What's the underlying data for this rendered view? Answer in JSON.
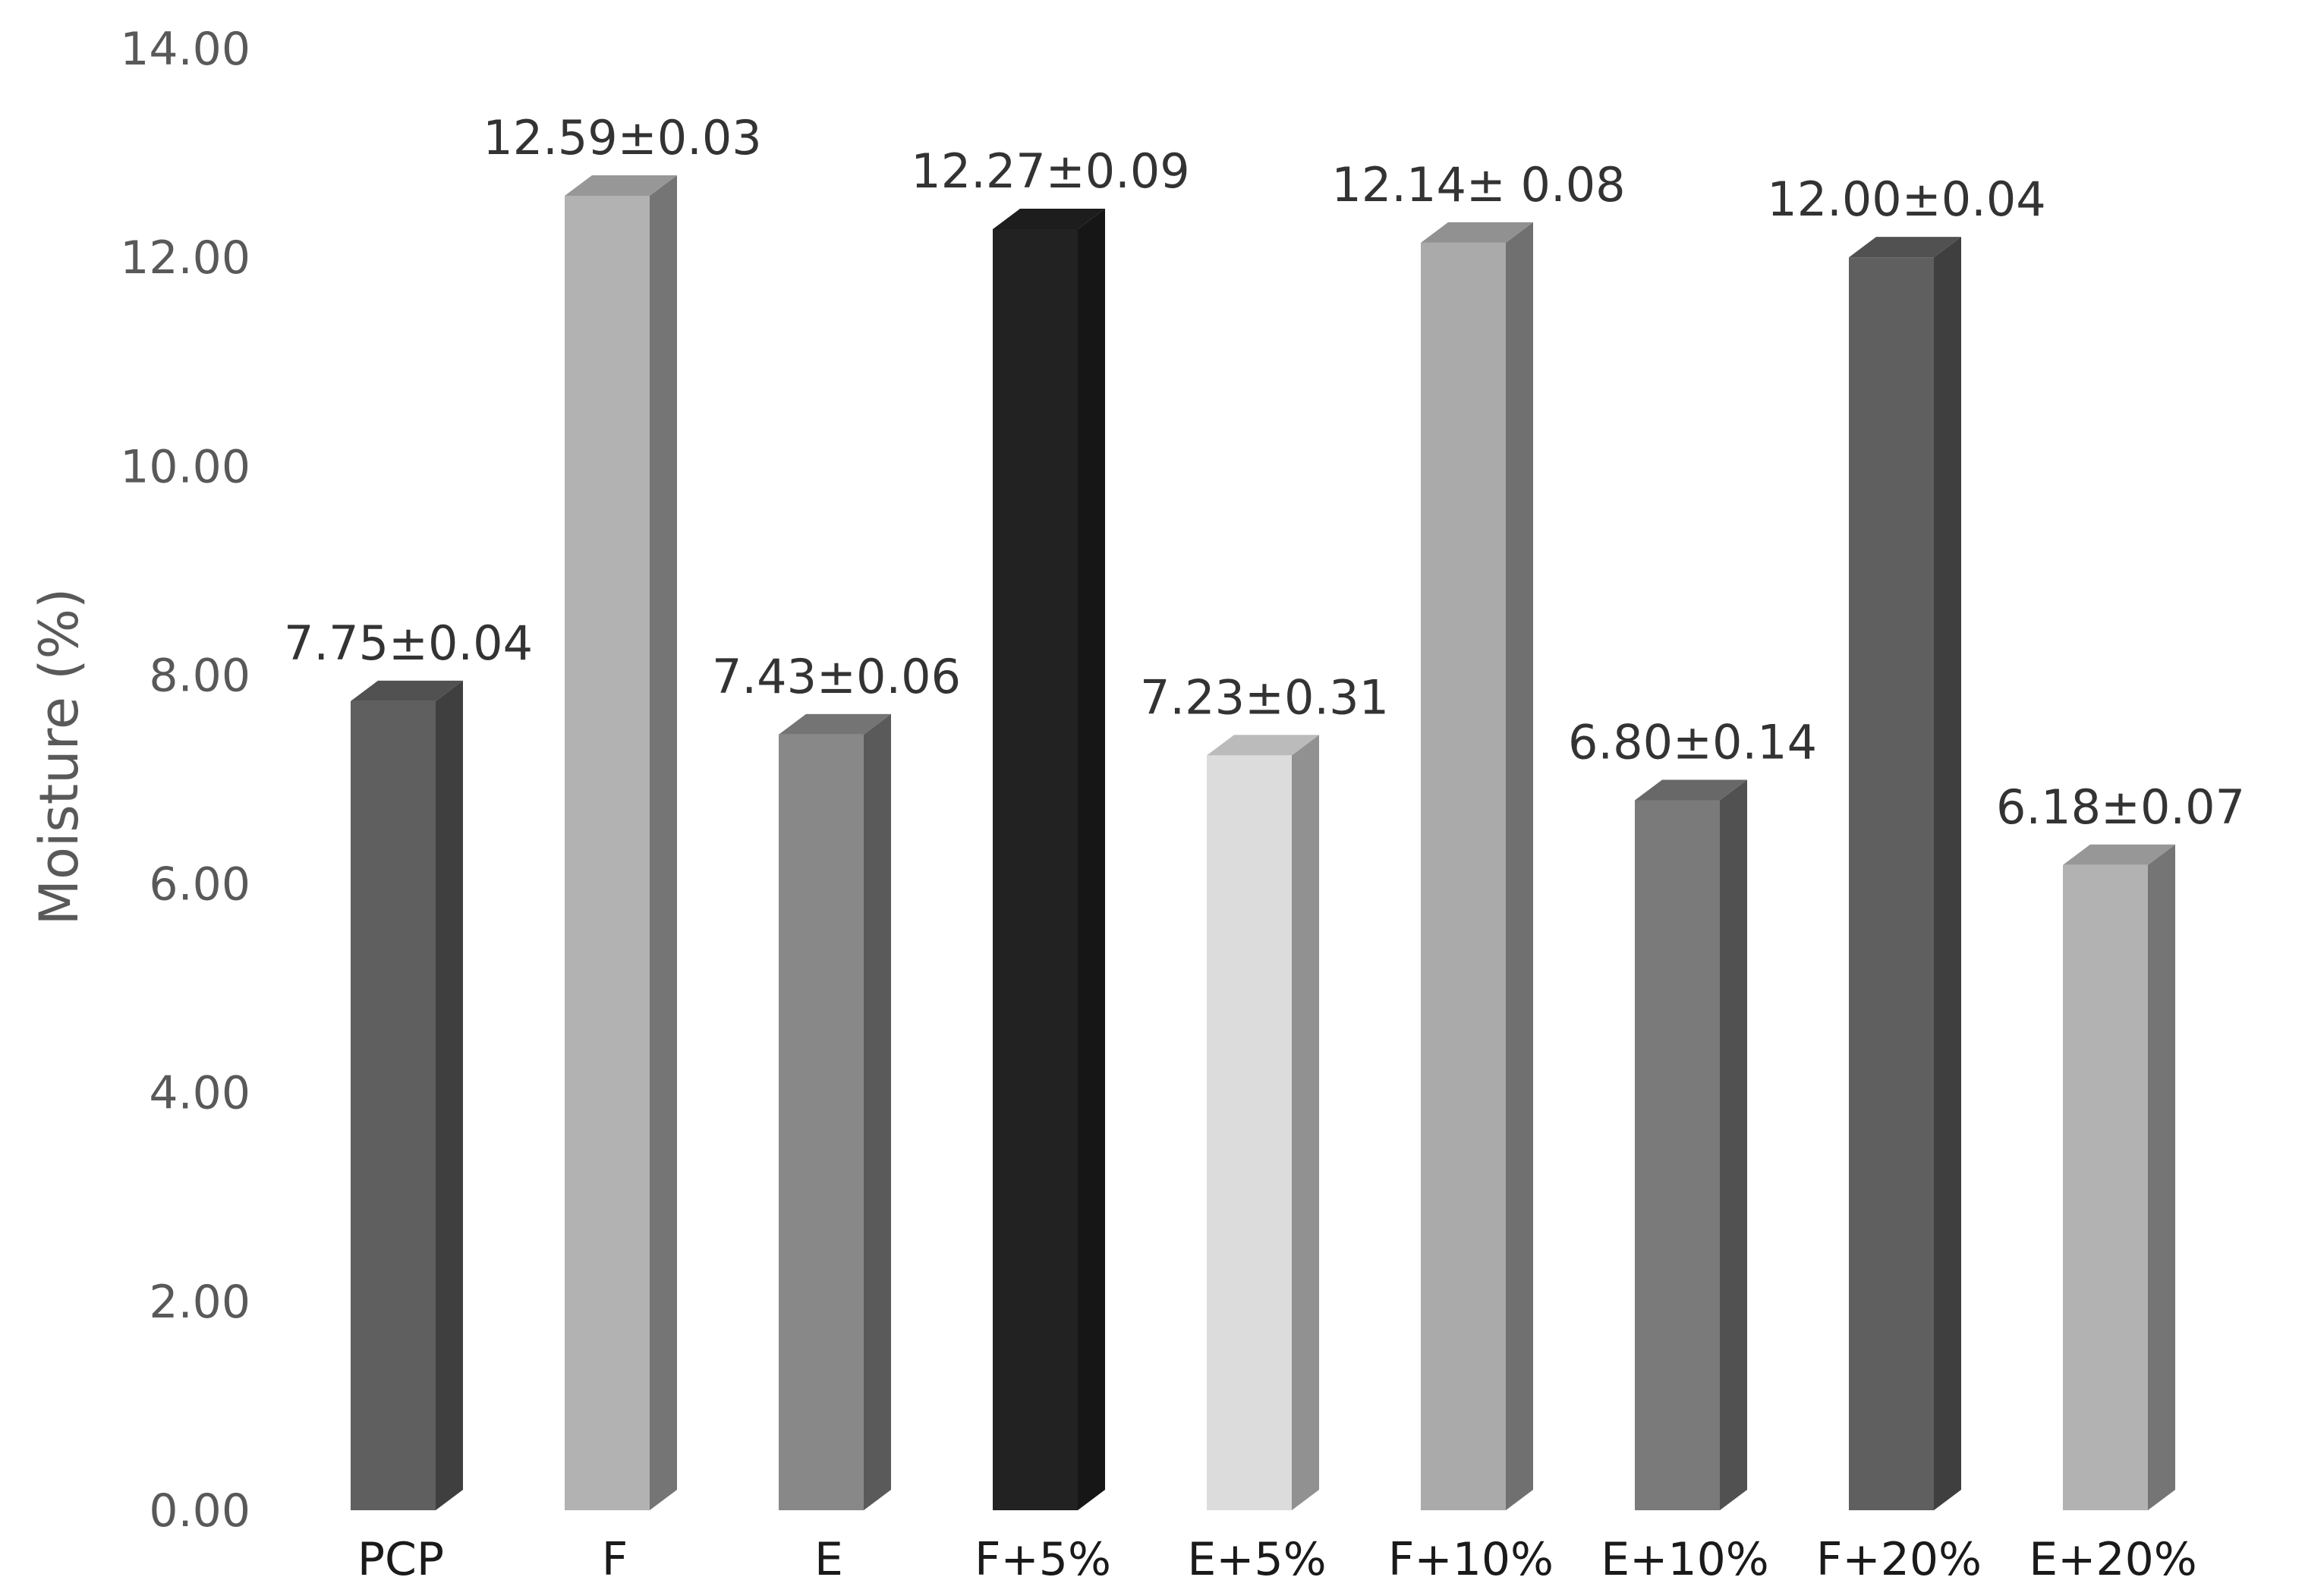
{
  "chart_data": {
    "type": "bar",
    "style": "3d-column",
    "title": "",
    "xlabel": "",
    "ylabel": "Moisture (%)",
    "ylim": [
      0,
      14
    ],
    "yticks": [
      "0.00",
      "2.00",
      "4.00",
      "6.00",
      "8.00",
      "10.00",
      "12.00",
      "14.00"
    ],
    "grid": false,
    "legend": "none",
    "categories": [
      "PCP",
      "F",
      "E",
      "F+5%",
      "E+5%",
      "F+10%",
      "E+10%",
      "F+20%",
      "E+20%"
    ],
    "values": [
      7.75,
      12.59,
      7.43,
      12.27,
      7.23,
      12.14,
      6.8,
      12.0,
      6.18
    ],
    "errors": [
      0.04,
      0.03,
      0.06,
      0.09,
      0.31,
      0.08,
      0.14,
      0.04,
      0.07
    ],
    "data_labels": [
      "7.75±0.04",
      "12.59±0.03",
      "7.43±0.06",
      "12.27±0.09",
      "7.23±0.31",
      "12.14± 0.08",
      "6.80±0.14",
      "12.00±0.04",
      "6.18±0.07"
    ],
    "bar_colors": [
      "#5f5f5f",
      "#b2b2b2",
      "#888888",
      "#222222",
      "#dcdcdc",
      "#aaaaaa",
      "#7a7a7a",
      "#5f5f5f",
      "#b2b2b2"
    ]
  }
}
